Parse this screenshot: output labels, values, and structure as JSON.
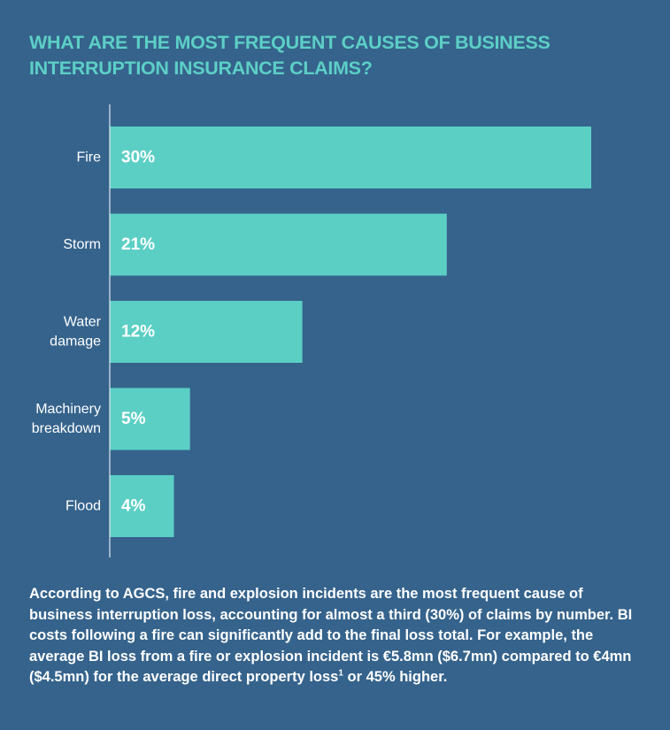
{
  "chart_data": {
    "type": "bar",
    "orientation": "horizontal",
    "title": "WHAT ARE THE MOST FREQUENT CAUSES OF BUSINESS INTERRUPTION INSURANCE CLAIMS?",
    "categories": [
      [
        "Fire"
      ],
      [
        "Storm"
      ],
      [
        "Water",
        "damage"
      ],
      [
        "Machinery",
        "breakdown"
      ],
      [
        "Flood"
      ]
    ],
    "values": [
      30,
      21,
      12,
      5,
      4
    ],
    "value_labels": [
      "30%",
      "21%",
      "12%",
      "5%",
      "4%"
    ],
    "unit": "%",
    "xlim": [
      0,
      30
    ],
    "xlabel": "",
    "ylabel": "",
    "grid": false,
    "colors": {
      "bar": "#5ccfc5",
      "axis": "#dfe8f0",
      "background": "#35638c",
      "title": "#5dcfc6"
    }
  },
  "caption": {
    "text": "According to AGCS, fire and explosion incidents are the most frequent cause of business interruption loss, accounting for almost a third (30%) of claims by number. BI costs following a fire can significantly add to the final loss total. For example, the average BI loss from a fire or explosion incident is €5.8mn ($6.7mn) compared to €4mn ($4.5mn) for the average direct property loss",
    "footnote_mark": "1",
    "text_after": " or 45% higher."
  }
}
